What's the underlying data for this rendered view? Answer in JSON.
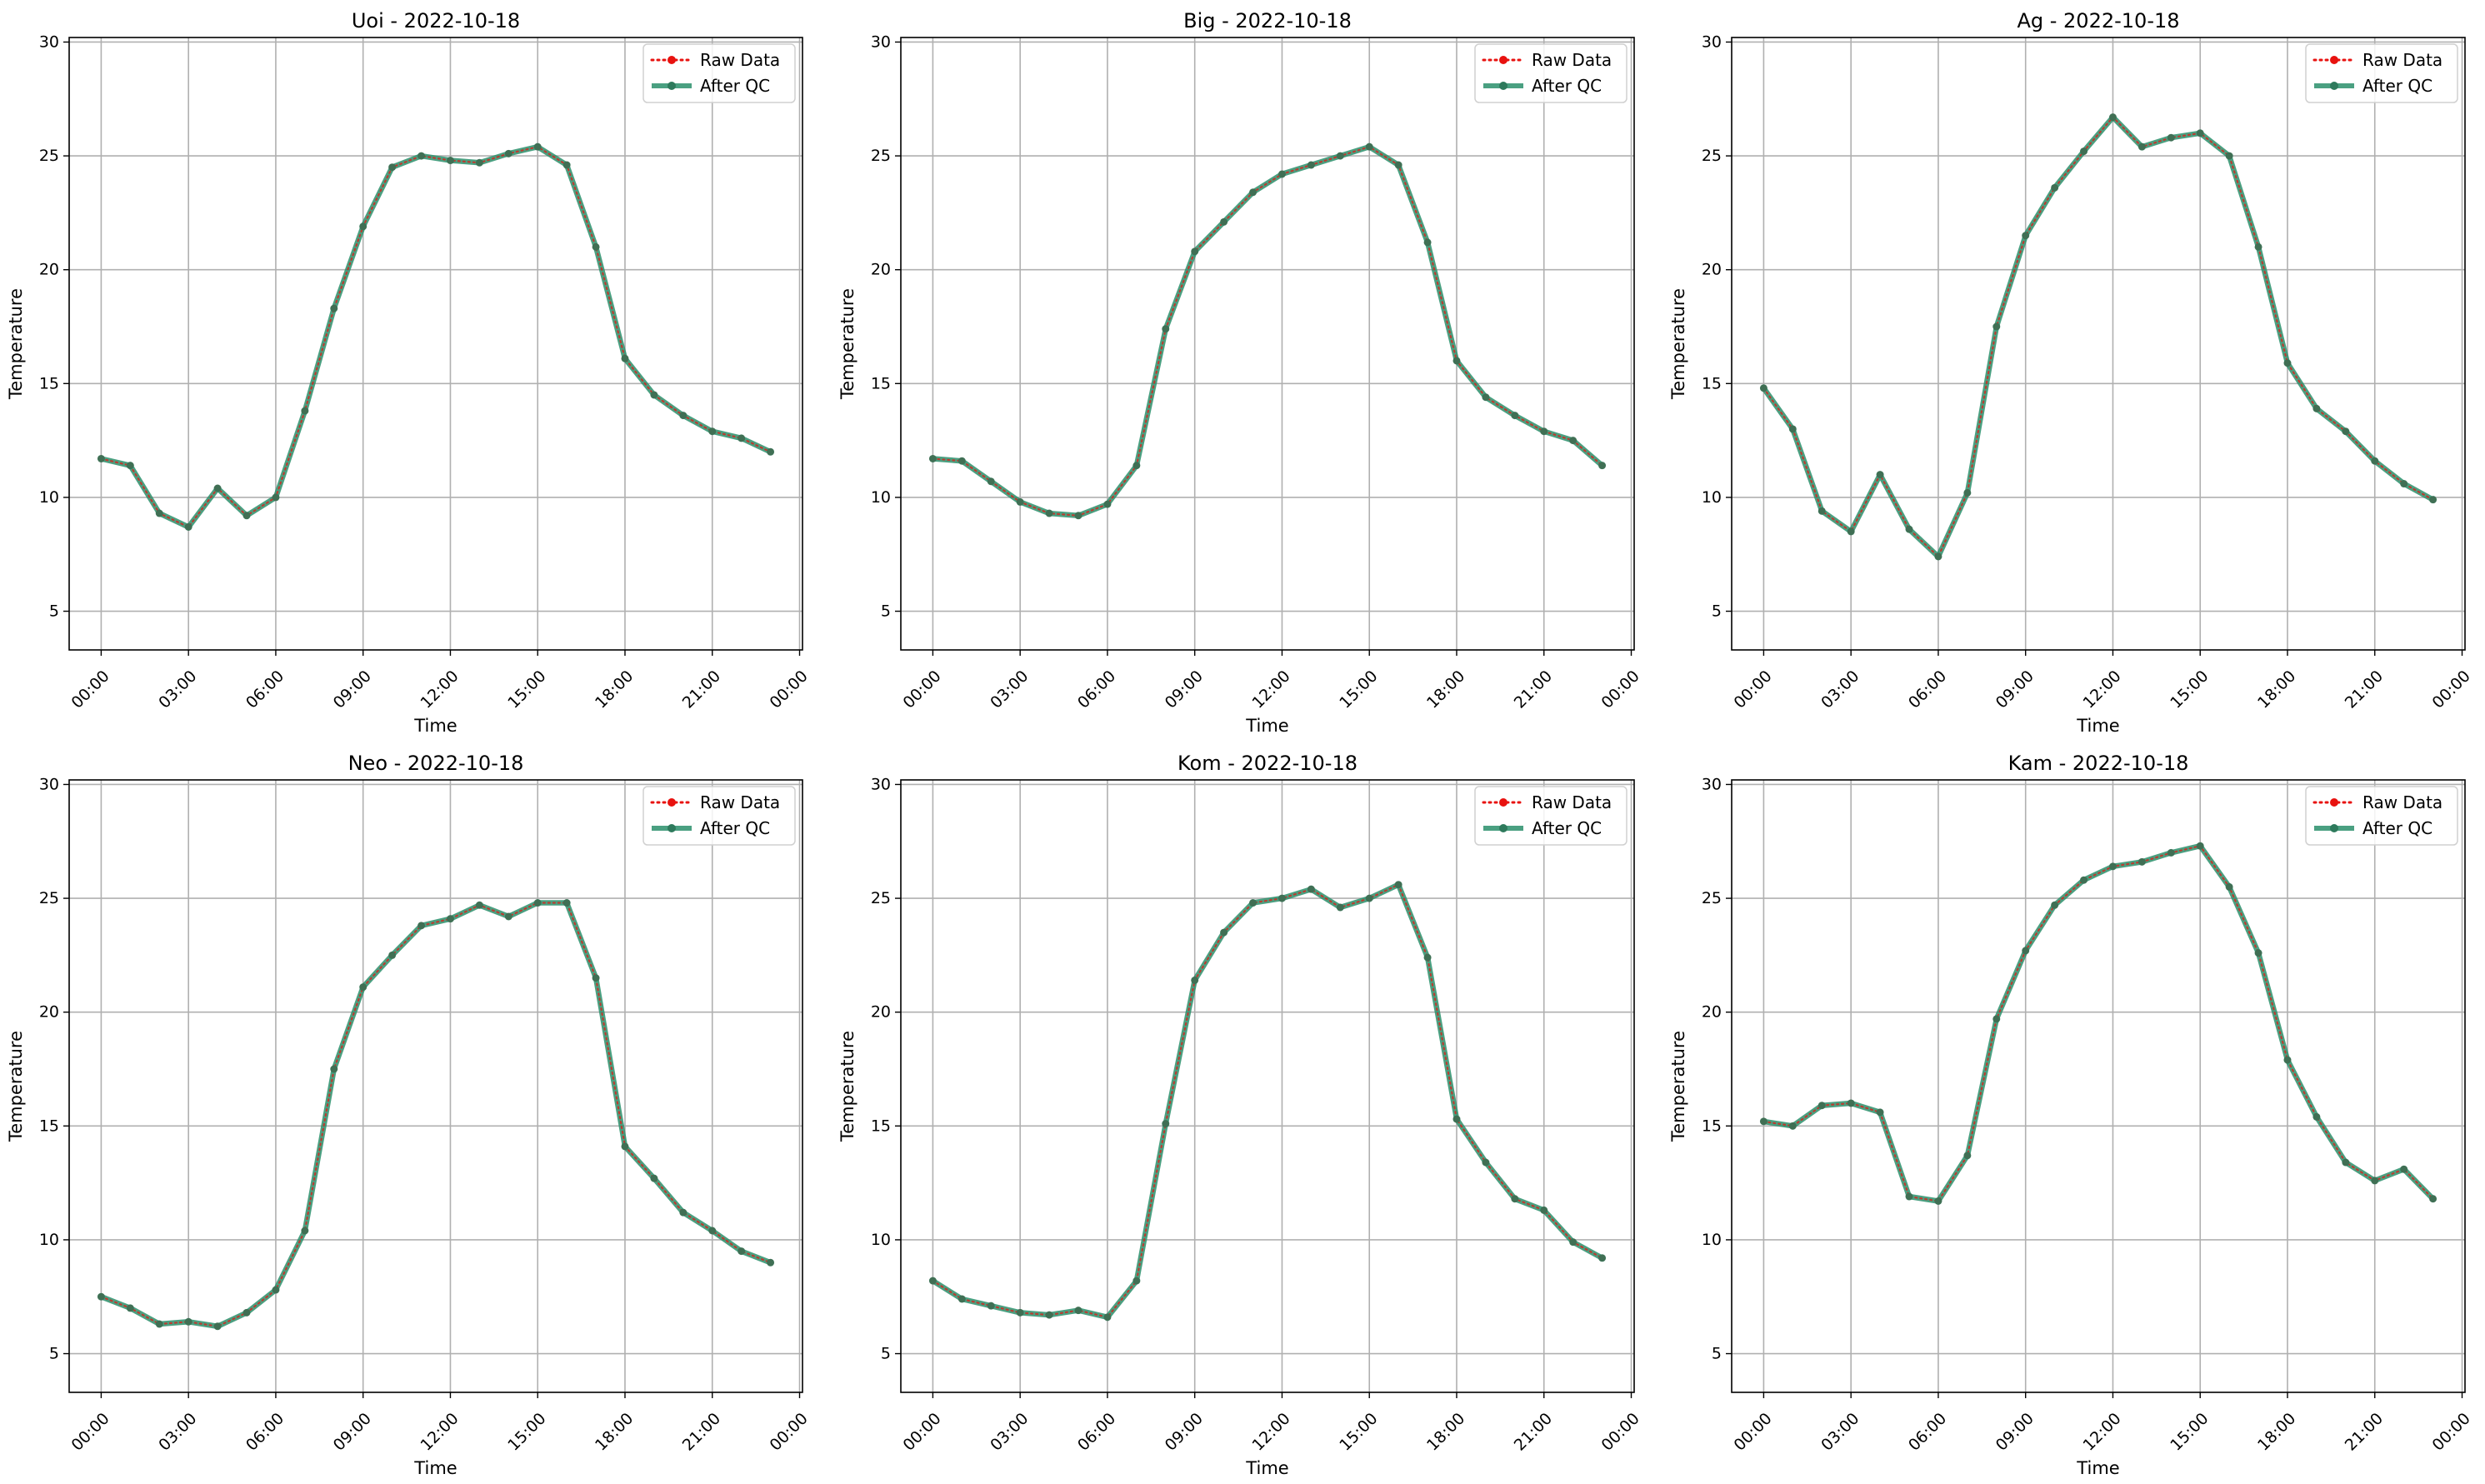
{
  "chart_data": [
    {
      "type": "line",
      "title": "Uoi - 2022-10-18",
      "xlabel": "Time",
      "ylabel": "Temperature",
      "xlim": [
        -1.1,
        24.1
      ],
      "ylim": [
        3.3,
        30.2
      ],
      "x_ticks": [
        "00:00",
        "03:00",
        "06:00",
        "09:00",
        "12:00",
        "15:00",
        "18:00",
        "21:00",
        "00:00"
      ],
      "y_ticks": [
        5,
        10,
        15,
        20,
        25,
        30
      ],
      "grid": true,
      "legend_position": "top-right",
      "x": [
        "00:00",
        "01:00",
        "02:00",
        "03:00",
        "04:00",
        "05:00",
        "06:00",
        "07:00",
        "08:00",
        "09:00",
        "10:00",
        "11:00",
        "12:00",
        "13:00",
        "14:00",
        "15:00",
        "16:00",
        "17:00",
        "18:00",
        "19:00",
        "20:00",
        "21:00",
        "22:00",
        "23:00"
      ],
      "series": [
        {
          "name": "Raw Data",
          "color": "#e8120f",
          "values": [
            11.7,
            11.4,
            9.3,
            8.7,
            10.4,
            9.2,
            10.0,
            13.8,
            18.3,
            21.9,
            24.5,
            25.0,
            24.8,
            24.7,
            25.1,
            25.4,
            24.6,
            21.0,
            16.1,
            14.5,
            13.6,
            12.9,
            12.6,
            12.0
          ]
        },
        {
          "name": "After QC",
          "color": "#2a8f6b",
          "values": [
            11.7,
            11.4,
            9.3,
            8.7,
            10.4,
            9.2,
            10.0,
            13.8,
            18.3,
            21.9,
            24.5,
            25.0,
            24.8,
            24.7,
            25.1,
            25.4,
            24.6,
            21.0,
            16.1,
            14.5,
            13.6,
            12.9,
            12.6,
            12.0
          ]
        }
      ]
    },
    {
      "type": "line",
      "title": "Big - 2022-10-18",
      "xlabel": "Time",
      "ylabel": "Temperature",
      "xlim": [
        -1.1,
        24.1
      ],
      "ylim": [
        3.3,
        30.2
      ],
      "x_ticks": [
        "00:00",
        "03:00",
        "06:00",
        "09:00",
        "12:00",
        "15:00",
        "18:00",
        "21:00",
        "00:00"
      ],
      "y_ticks": [
        5,
        10,
        15,
        20,
        25,
        30
      ],
      "grid": true,
      "legend_position": "top-right",
      "x": [
        "00:00",
        "01:00",
        "02:00",
        "03:00",
        "04:00",
        "05:00",
        "06:00",
        "07:00",
        "08:00",
        "09:00",
        "10:00",
        "11:00",
        "12:00",
        "13:00",
        "14:00",
        "15:00",
        "16:00",
        "17:00",
        "18:00",
        "19:00",
        "20:00",
        "21:00",
        "22:00",
        "23:00"
      ],
      "series": [
        {
          "name": "Raw Data",
          "color": "#e8120f",
          "values": [
            11.7,
            11.6,
            10.7,
            9.8,
            9.3,
            9.2,
            9.7,
            11.4,
            17.4,
            20.8,
            22.1,
            23.4,
            24.2,
            24.6,
            25.0,
            25.4,
            24.6,
            21.2,
            16.0,
            14.4,
            13.6,
            12.9,
            12.5,
            11.4
          ]
        },
        {
          "name": "After QC",
          "color": "#2a8f6b",
          "values": [
            11.7,
            11.6,
            10.7,
            9.8,
            9.3,
            9.2,
            9.7,
            11.4,
            17.4,
            20.8,
            22.1,
            23.4,
            24.2,
            24.6,
            25.0,
            25.4,
            24.6,
            21.2,
            16.0,
            14.4,
            13.6,
            12.9,
            12.5,
            11.4
          ]
        }
      ]
    },
    {
      "type": "line",
      "title": "Ag - 2022-10-18",
      "xlabel": "Time",
      "ylabel": "Temperature",
      "xlim": [
        -1.1,
        24.1
      ],
      "ylim": [
        3.3,
        30.2
      ],
      "x_ticks": [
        "00:00",
        "03:00",
        "06:00",
        "09:00",
        "12:00",
        "15:00",
        "18:00",
        "21:00",
        "00:00"
      ],
      "y_ticks": [
        5,
        10,
        15,
        20,
        25,
        30
      ],
      "grid": true,
      "legend_position": "top-right",
      "x": [
        "00:00",
        "01:00",
        "02:00",
        "03:00",
        "04:00",
        "05:00",
        "06:00",
        "07:00",
        "08:00",
        "09:00",
        "10:00",
        "11:00",
        "12:00",
        "13:00",
        "14:00",
        "15:00",
        "16:00",
        "17:00",
        "18:00",
        "19:00",
        "20:00",
        "21:00",
        "22:00",
        "23:00"
      ],
      "series": [
        {
          "name": "Raw Data",
          "color": "#e8120f",
          "values": [
            14.8,
            13.0,
            9.4,
            8.5,
            11.0,
            8.6,
            7.4,
            10.2,
            17.5,
            21.5,
            23.6,
            25.2,
            26.7,
            25.4,
            25.8,
            26.0,
            25.0,
            21.0,
            15.9,
            13.9,
            12.9,
            11.6,
            10.6,
            9.9
          ]
        },
        {
          "name": "After QC",
          "color": "#2a8f6b",
          "values": [
            14.8,
            13.0,
            9.4,
            8.5,
            11.0,
            8.6,
            7.4,
            10.2,
            17.5,
            21.5,
            23.6,
            25.2,
            26.7,
            25.4,
            25.8,
            26.0,
            25.0,
            21.0,
            15.9,
            13.9,
            12.9,
            11.6,
            10.6,
            9.9
          ]
        }
      ]
    },
    {
      "type": "line",
      "title": "Neo - 2022-10-18",
      "xlabel": "Time",
      "ylabel": "Temperature",
      "xlim": [
        -1.1,
        24.1
      ],
      "ylim": [
        3.3,
        30.2
      ],
      "x_ticks": [
        "00:00",
        "03:00",
        "06:00",
        "09:00",
        "12:00",
        "15:00",
        "18:00",
        "21:00",
        "00:00"
      ],
      "y_ticks": [
        5,
        10,
        15,
        20,
        25,
        30
      ],
      "grid": true,
      "legend_position": "top-right",
      "x": [
        "00:00",
        "01:00",
        "02:00",
        "03:00",
        "04:00",
        "05:00",
        "06:00",
        "07:00",
        "08:00",
        "09:00",
        "10:00",
        "11:00",
        "12:00",
        "13:00",
        "14:00",
        "15:00",
        "16:00",
        "17:00",
        "18:00",
        "19:00",
        "20:00",
        "21:00",
        "22:00",
        "23:00"
      ],
      "series": [
        {
          "name": "Raw Data",
          "color": "#e8120f",
          "values": [
            7.5,
            7.0,
            6.3,
            6.4,
            6.2,
            6.8,
            7.8,
            10.4,
            17.5,
            21.1,
            22.5,
            23.8,
            24.1,
            24.7,
            24.2,
            24.8,
            24.8,
            21.5,
            14.1,
            12.7,
            11.2,
            10.4,
            9.5,
            9.0
          ]
        },
        {
          "name": "After QC",
          "color": "#2a8f6b",
          "values": [
            7.5,
            7.0,
            6.3,
            6.4,
            6.2,
            6.8,
            7.8,
            10.4,
            17.5,
            21.1,
            22.5,
            23.8,
            24.1,
            24.7,
            24.2,
            24.8,
            24.8,
            21.5,
            14.1,
            12.7,
            11.2,
            10.4,
            9.5,
            9.0
          ]
        }
      ]
    },
    {
      "type": "line",
      "title": "Kom - 2022-10-18",
      "xlabel": "Time",
      "ylabel": "Temperature",
      "xlim": [
        -1.1,
        24.1
      ],
      "ylim": [
        3.3,
        30.2
      ],
      "x_ticks": [
        "00:00",
        "03:00",
        "06:00",
        "09:00",
        "12:00",
        "15:00",
        "18:00",
        "21:00",
        "00:00"
      ],
      "y_ticks": [
        5,
        10,
        15,
        20,
        25,
        30
      ],
      "grid": true,
      "legend_position": "top-right",
      "x": [
        "00:00",
        "01:00",
        "02:00",
        "03:00",
        "04:00",
        "05:00",
        "06:00",
        "07:00",
        "08:00",
        "09:00",
        "10:00",
        "11:00",
        "12:00",
        "13:00",
        "14:00",
        "15:00",
        "16:00",
        "17:00",
        "18:00",
        "19:00",
        "20:00",
        "21:00",
        "22:00",
        "23:00"
      ],
      "series": [
        {
          "name": "Raw Data",
          "color": "#e8120f",
          "values": [
            8.2,
            7.4,
            7.1,
            6.8,
            6.7,
            6.9,
            6.6,
            8.2,
            15.1,
            21.4,
            23.5,
            24.8,
            25.0,
            25.4,
            24.6,
            25.0,
            25.6,
            22.4,
            15.3,
            13.4,
            11.8,
            11.3,
            9.9,
            9.2
          ]
        },
        {
          "name": "After QC",
          "color": "#2a8f6b",
          "values": [
            8.2,
            7.4,
            7.1,
            6.8,
            6.7,
            6.9,
            6.6,
            8.2,
            15.1,
            21.4,
            23.5,
            24.8,
            25.0,
            25.4,
            24.6,
            25.0,
            25.6,
            22.4,
            15.3,
            13.4,
            11.8,
            11.3,
            9.9,
            9.2
          ]
        }
      ]
    },
    {
      "type": "line",
      "title": "Kam - 2022-10-18",
      "xlabel": "Time",
      "ylabel": "Temperature",
      "xlim": [
        -1.1,
        24.1
      ],
      "ylim": [
        3.3,
        30.2
      ],
      "x_ticks": [
        "00:00",
        "03:00",
        "06:00",
        "09:00",
        "12:00",
        "15:00",
        "18:00",
        "21:00",
        "00:00"
      ],
      "y_ticks": [
        5,
        10,
        15,
        20,
        25,
        30
      ],
      "grid": true,
      "legend_position": "top-right",
      "x": [
        "00:00",
        "01:00",
        "02:00",
        "03:00",
        "04:00",
        "05:00",
        "06:00",
        "07:00",
        "08:00",
        "09:00",
        "10:00",
        "11:00",
        "12:00",
        "13:00",
        "14:00",
        "15:00",
        "16:00",
        "17:00",
        "18:00",
        "19:00",
        "20:00",
        "21:00",
        "22:00",
        "23:00"
      ],
      "series": [
        {
          "name": "Raw Data",
          "color": "#e8120f",
          "values": [
            15.2,
            15.0,
            15.9,
            16.0,
            15.6,
            11.9,
            11.7,
            13.7,
            19.7,
            22.7,
            24.7,
            25.8,
            26.4,
            26.6,
            27.0,
            27.3,
            25.5,
            22.6,
            17.9,
            15.4,
            13.4,
            12.6,
            13.1,
            11.8
          ]
        },
        {
          "name": "After QC",
          "color": "#2a8f6b",
          "values": [
            15.2,
            15.0,
            15.9,
            16.0,
            15.6,
            11.9,
            11.7,
            13.7,
            19.7,
            22.7,
            24.7,
            25.8,
            26.4,
            26.6,
            27.0,
            27.3,
            25.5,
            22.6,
            17.9,
            15.4,
            13.4,
            12.6,
            13.1,
            11.8
          ]
        }
      ]
    }
  ]
}
